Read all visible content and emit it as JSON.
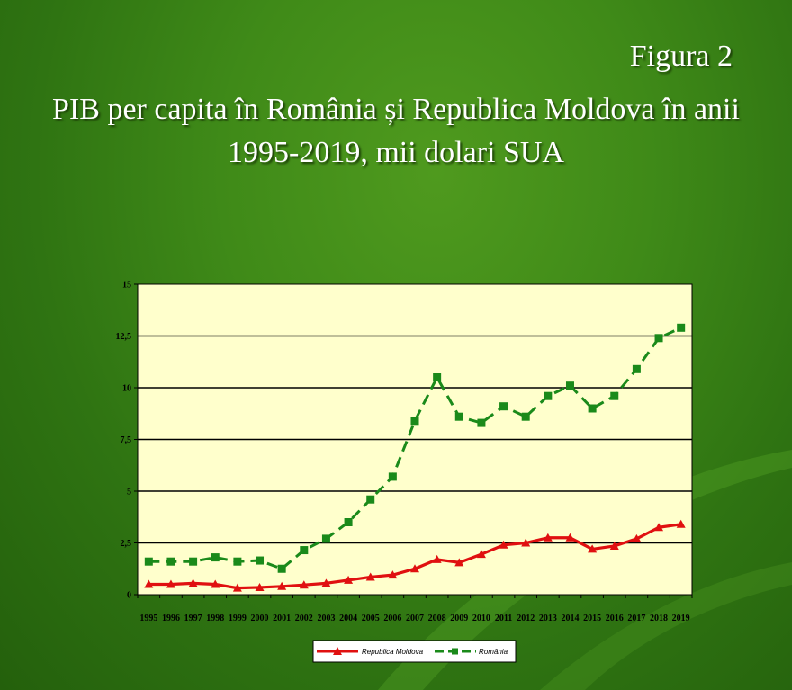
{
  "figure_label": "Figura 2",
  "title": "PIB per capita în România și Republica Moldova în anii 1995-2019, mii dolari SUA",
  "chart_data": {
    "type": "line",
    "categories": [
      "1995",
      "1996",
      "1997",
      "1998",
      "1999",
      "2000",
      "2001",
      "2002",
      "2003",
      "2004",
      "2005",
      "2006",
      "2007",
      "2008",
      "2009",
      "2010",
      "2011",
      "2012",
      "2013",
      "2014",
      "2015",
      "2016",
      "2017",
      "2018",
      "2019"
    ],
    "y_ticks": [
      "0",
      "2,5",
      "5",
      "7,5",
      "10",
      "12,5",
      "15"
    ],
    "ylim": [
      0,
      15
    ],
    "grid": true,
    "legend_position": "bottom",
    "plot_background": "#ffffcc",
    "series": [
      {
        "name": "Republica Moldova",
        "color": "#e01010",
        "style": "solid",
        "marker": "triangle",
        "values": [
          0.5,
          0.5,
          0.55,
          0.5,
          0.32,
          0.35,
          0.4,
          0.47,
          0.55,
          0.7,
          0.85,
          0.95,
          1.25,
          1.7,
          1.55,
          1.95,
          2.4,
          2.5,
          2.75,
          2.75,
          2.2,
          2.35,
          2.7,
          3.25,
          3.4
        ]
      },
      {
        "name": "România",
        "color": "#1a8a1a",
        "style": "dashed",
        "marker": "square",
        "values": [
          1.6,
          1.6,
          1.6,
          1.8,
          1.6,
          1.65,
          1.25,
          2.15,
          2.7,
          3.5,
          4.6,
          5.7,
          8.4,
          10.5,
          8.6,
          8.3,
          9.1,
          8.6,
          9.6,
          10.1,
          9.0,
          9.6,
          10.9,
          12.4,
          12.9
        ]
      }
    ]
  }
}
